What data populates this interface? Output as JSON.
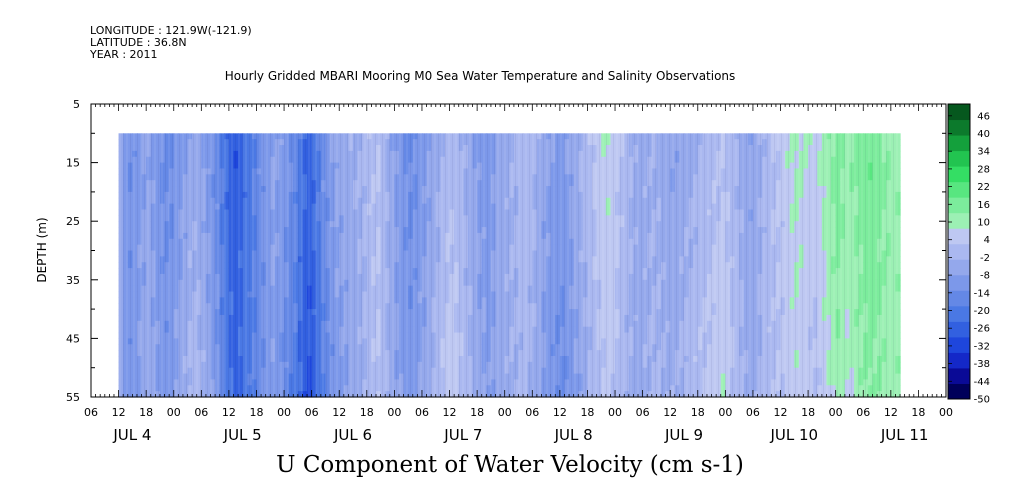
{
  "header": {
    "longitude": "LONGITUDE : 121.9W(-121.9)",
    "latitude": "LATITUDE : 36.8N",
    "year": "YEAR : 2011"
  },
  "chart_data": {
    "type": "heatmap",
    "title": "Hourly Gridded MBARI Mooring M0 Sea Water Temperature and Salinity Observations",
    "xlabel": "U Component of Water Velocity (cm s-1)",
    "ylabel": "DEPTH (m)",
    "ylim": [
      55,
      5
    ],
    "y_ticks": [
      5,
      15,
      25,
      35,
      45,
      55
    ],
    "data_depth_range": [
      10,
      55
    ],
    "x_range_hours": [
      0,
      186
    ],
    "data_start_hour": 6,
    "x_hour_labels": [
      "06",
      "12",
      "18",
      "00",
      "06",
      "12",
      "18",
      "00",
      "06",
      "12",
      "18",
      "00",
      "06",
      "12",
      "18",
      "00",
      "06",
      "12",
      "18",
      "00",
      "06",
      "12",
      "18",
      "00",
      "06",
      "12",
      "18",
      "00",
      "06",
      "12",
      "18",
      "00"
    ],
    "x_day_labels": [
      "JUL  4",
      "JUL  5",
      "JUL  6",
      "JUL  7",
      "JUL  8",
      "JUL  9",
      "JUL 10",
      "JUL 11"
    ],
    "colorbar": {
      "levels": [
        "46",
        "40",
        "34",
        "28",
        "22",
        "16",
        "10",
        "4",
        "-2",
        "-8",
        "-14",
        "-20",
        "-26",
        "-32",
        "-38",
        "-44",
        "-50"
      ],
      "min": -50,
      "max": 50
    },
    "u_velocity_by_hour": [
      -6,
      -10,
      -12,
      -11,
      -9,
      -7,
      -6,
      -8,
      -10,
      -12,
      -13,
      -12,
      -10,
      -8,
      -6,
      -4,
      -3,
      -4,
      -6,
      -8,
      -11,
      -14,
      -18,
      -22,
      -25,
      -27,
      -25,
      -22,
      -20,
      -18,
      -15,
      -12,
      -10,
      -8,
      -9,
      -11,
      -13,
      -15,
      -18,
      -22,
      -25,
      -27,
      -24,
      -20,
      -16,
      -13,
      -10,
      -8,
      -7,
      -6,
      -5,
      -4,
      -3,
      -2,
      1,
      2,
      3,
      0,
      -3,
      -6,
      -8,
      -10,
      -12,
      -13,
      -12,
      -10,
      -8,
      -6,
      -4,
      -2,
      0,
      2,
      3,
      2,
      0,
      -2,
      -4,
      -6,
      -8,
      -9,
      -10,
      -8,
      -6,
      -5,
      -4,
      -3,
      -2,
      -1,
      0,
      -1,
      -3,
      -5,
      -7,
      -9,
      -10,
      -11,
      -12,
      -10,
      -8,
      -6,
      -4,
      -2,
      0,
      2,
      4,
      5,
      6,
      5,
      3,
      1,
      -1,
      -3,
      -4,
      -5,
      -4,
      -3,
      -2,
      -3,
      -4,
      -5,
      -6,
      -5,
      -4,
      -3,
      -2,
      -1,
      0,
      1,
      2,
      3,
      4,
      5,
      3,
      1,
      -1,
      -3,
      -5,
      -6,
      -5,
      -3,
      -1,
      1,
      2,
      3,
      4,
      6,
      7,
      8,
      7,
      6,
      5,
      4,
      6,
      8,
      10,
      12,
      14,
      12,
      10,
      11,
      13,
      14,
      15,
      16,
      15,
      14,
      13,
      12,
      11,
      12
    ]
  }
}
